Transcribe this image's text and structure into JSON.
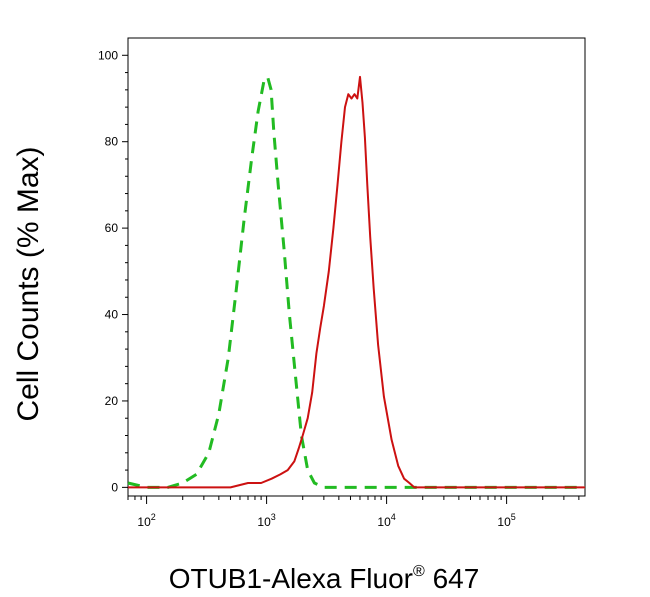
{
  "chart_data": {
    "type": "line",
    "title": "",
    "xlabel": "OTUB1-Alexa Fluor",
    "xlabel_sup": "®",
    "xlabel_tail": " 647",
    "ylabel": "Cell Counts (% Max)",
    "xscale": "log",
    "xlim": [
      70,
      450000
    ],
    "ylim": [
      -2,
      104
    ],
    "grid": false,
    "y_ticks": [
      {
        "value": 0,
        "label": "0"
      },
      {
        "value": 20,
        "label": "20"
      },
      {
        "value": 40,
        "label": "40"
      },
      {
        "value": 60,
        "label": "60"
      },
      {
        "value": 80,
        "label": "80"
      },
      {
        "value": 100,
        "label": "100"
      }
    ],
    "x_ticks": [
      {
        "value": 100,
        "base": "10",
        "exp": "2"
      },
      {
        "value": 1000,
        "base": "10",
        "exp": "3"
      },
      {
        "value": 10000,
        "base": "10",
        "exp": "4"
      },
      {
        "value": 100000,
        "base": "10",
        "exp": "5"
      }
    ],
    "series": [
      {
        "color": "#22bb22",
        "dash": "dashed",
        "x": [
          70,
          100,
          150,
          200,
          260,
          330,
          400,
          480,
          560,
          650,
          750,
          850,
          950,
          1020,
          1090,
          1150,
          1250,
          1400,
          1550,
          1750,
          1950,
          2200,
          2500,
          3000,
          4000,
          6000,
          10000,
          20000,
          50000,
          100000,
          450000
        ],
        "y": [
          1,
          0,
          0,
          1,
          3,
          8,
          17,
          30,
          46,
          62,
          76,
          87,
          94,
          95,
          92,
          82,
          70,
          55,
          40,
          25,
          12,
          4,
          1,
          0,
          0,
          0,
          0,
          0,
          0,
          0,
          0
        ]
      },
      {
        "color": "#cc1111",
        "dash": "solid",
        "x": [
          70,
          300,
          500,
          700,
          900,
          1100,
          1300,
          1500,
          1700,
          1850,
          2000,
          2200,
          2400,
          2600,
          2800,
          3000,
          3300,
          3600,
          3900,
          4200,
          4500,
          4800,
          5100,
          5400,
          5700,
          6000,
          6300,
          6600,
          6900,
          7300,
          7800,
          8500,
          9500,
          11000,
          12500,
          14000,
          15500,
          17000,
          19000,
          22000,
          30000,
          100000,
          450000
        ],
        "y": [
          0,
          0,
          0,
          1,
          1,
          2,
          3,
          4,
          6,
          9,
          12,
          16,
          22,
          31,
          37,
          42,
          50,
          60,
          70,
          80,
          88,
          91,
          90,
          91,
          90,
          95,
          89,
          81,
          70,
          58,
          46,
          33,
          21,
          11,
          5,
          2,
          1,
          0,
          0,
          0,
          0,
          0,
          0
        ]
      }
    ]
  }
}
